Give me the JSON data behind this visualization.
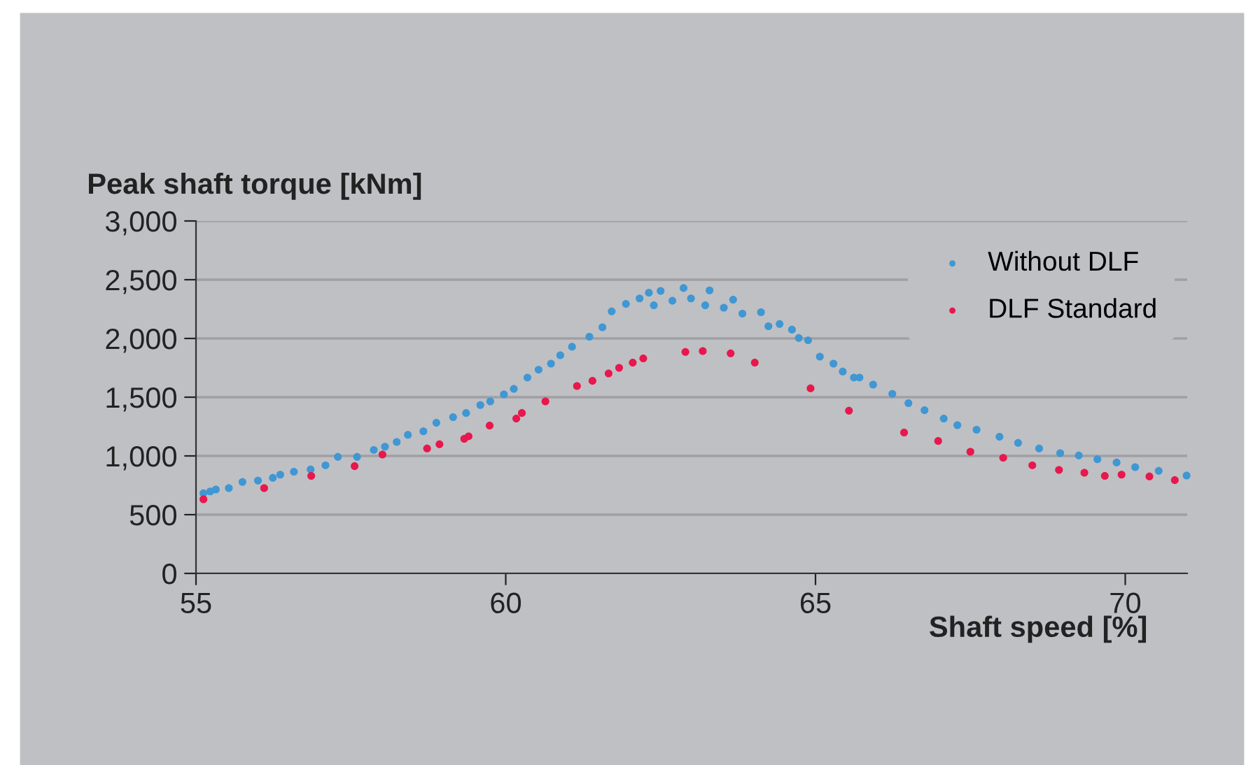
{
  "chart_data": {
    "type": "scatter",
    "xlabel": "Shaft speed [%]",
    "ylabel": "Peak shaft torque [kNm]",
    "xlim": [
      55,
      71
    ],
    "xticks": [
      55,
      60,
      65,
      70
    ],
    "ylim": [
      0,
      3000
    ],
    "yticks": [
      0,
      500,
      {
        "value": 1000,
        "label": "1,000"
      },
      {
        "value": 1500,
        "label": "1,500"
      },
      {
        "value": 2000,
        "label": "2,000"
      },
      {
        "value": 2500,
        "label": "2,500"
      },
      {
        "value": 3000,
        "label": "3,000"
      }
    ],
    "grid": "y",
    "legend": "top right",
    "marker": "circle",
    "series": [
      {
        "name": "Without DLF",
        "color": "#3f97d4",
        "x": [
          55.12,
          55.23,
          55.32,
          55.53,
          55.75,
          56.0,
          56.24,
          56.36,
          56.58,
          56.85,
          57.09,
          57.29,
          57.6,
          57.87,
          58.05,
          58.24,
          58.42,
          58.67,
          58.88,
          59.15,
          59.36,
          59.59,
          59.75,
          59.97,
          60.13,
          60.35,
          60.53,
          60.73,
          60.88,
          61.07,
          61.35,
          61.56,
          61.71,
          61.94,
          62.16,
          62.31,
          62.39,
          62.5,
          62.69,
          62.87,
          62.99,
          63.22,
          63.29,
          63.52,
          63.67,
          63.82,
          64.12,
          64.24,
          64.42,
          64.62,
          64.73,
          64.88,
          65.07,
          65.29,
          65.44,
          65.62,
          65.71,
          65.93,
          66.24,
          66.5,
          66.76,
          67.07,
          67.29,
          67.6,
          67.97,
          68.27,
          68.61,
          68.95,
          69.25,
          69.55,
          69.86,
          70.16,
          70.54,
          70.99
        ],
        "values": [
          682,
          698,
          714,
          726,
          778,
          790,
          813,
          841,
          865,
          885,
          920,
          992,
          992,
          1051,
          1079,
          1119,
          1179,
          1210,
          1282,
          1330,
          1365,
          1433,
          1464,
          1524,
          1571,
          1667,
          1734,
          1786,
          1857,
          1929,
          2015,
          2095,
          2230,
          2294,
          2341,
          2389,
          2282,
          2405,
          2321,
          2429,
          2341,
          2282,
          2409,
          2262,
          2330,
          2211,
          2223,
          2104,
          2123,
          2075,
          2004,
          1984,
          1845,
          1786,
          1718,
          1667,
          1667,
          1607,
          1528,
          1449,
          1389,
          1318,
          1262,
          1223,
          1163,
          1111,
          1063,
          1024,
          1004,
          972,
          944,
          905,
          873,
          833
        ]
      },
      {
        "name": "DLF Standard",
        "color": "#e8174d",
        "x": [
          55.12,
          56.1,
          56.86,
          57.56,
          58.01,
          58.73,
          58.93,
          59.33,
          59.4,
          59.74,
          60.17,
          60.26,
          60.64,
          61.15,
          61.4,
          61.66,
          61.83,
          62.05,
          62.22,
          62.9,
          63.18,
          63.63,
          64.02,
          64.92,
          65.54,
          66.43,
          66.98,
          67.5,
          68.03,
          68.5,
          68.93,
          69.34,
          69.67,
          69.94,
          70.39,
          70.8
        ],
        "values": [
          631,
          726,
          830,
          913,
          1012,
          1063,
          1099,
          1146,
          1167,
          1258,
          1318,
          1365,
          1464,
          1595,
          1639,
          1702,
          1750,
          1794,
          1830,
          1885,
          1893,
          1873,
          1794,
          1575,
          1385,
          1199,
          1127,
          1036,
          984,
          920,
          881,
          857,
          830,
          841,
          825,
          794
        ]
      }
    ]
  }
}
